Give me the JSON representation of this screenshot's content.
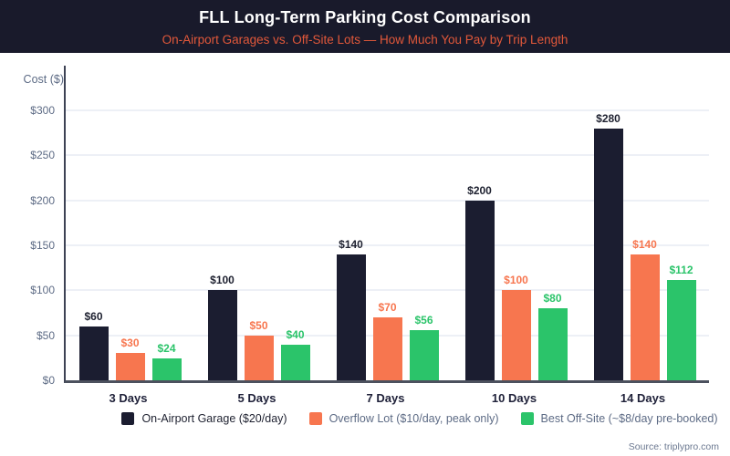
{
  "chart_data": {
    "type": "bar",
    "title": "FLL Long-Term Parking Cost Comparison",
    "subtitle": "On-Airport Garages vs. Off-Site Lots — How Much You Pay by Trip Length",
    "ylabel": "Cost ($)",
    "categories": [
      "3 Days",
      "5 Days",
      "7 Days",
      "10 Days",
      "14 Days"
    ],
    "series": [
      {
        "name": "On-Airport Garage ($20/day)",
        "color": "#1b1d30",
        "label_color": "#1e2130",
        "values": [
          60,
          100,
          140,
          200,
          280
        ]
      },
      {
        "name": "Overflow Lot ($10/day, peak only)",
        "color": "#f7764f",
        "label_color": "#f7764f",
        "values": [
          30,
          50,
          70,
          100,
          140
        ]
      },
      {
        "name": "Best Off-Site (~$8/day pre-booked)",
        "color": "#2bc46a",
        "label_color": "#2bc46a",
        "values": [
          24,
          40,
          56,
          80,
          112
        ]
      }
    ],
    "value_prefix": "$",
    "yticks": [
      {
        "label": "$0",
        "value": 0
      },
      {
        "label": "$50",
        "value": 50
      },
      {
        "label": "$100",
        "value": 100
      },
      {
        "label": "$150",
        "value": 150
      },
      {
        "label": "$200",
        "value": 200
      },
      {
        "label": "$250",
        "value": 250
      },
      {
        "label": "$300",
        "value": 300
      }
    ],
    "ylim": [
      0,
      300
    ],
    "grid": true,
    "legend_position": "bottom"
  },
  "source": "Source: triplypro.com",
  "colors": {
    "header_bg": "#191a2b",
    "title_text": "#ffffff",
    "subtitle_text": "#e2583a",
    "grid_line": "#edf0f6",
    "y_axis_line": "#3d4254",
    "x_axis_line": "#4c515e",
    "tick_text": "#5d6b85",
    "category_text": "#20223a"
  }
}
